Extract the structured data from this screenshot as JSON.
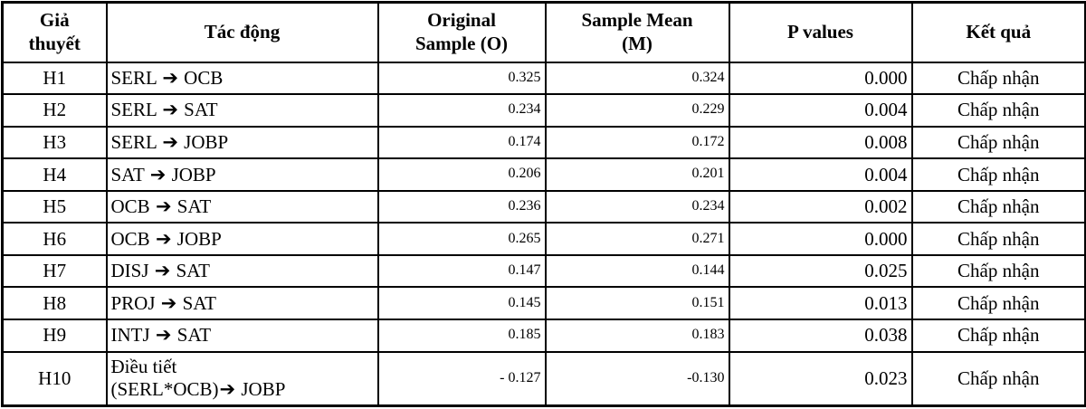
{
  "icons": {
    "right_arrow": "➔"
  },
  "colors": {
    "border": "#000000",
    "background": "#ffffff",
    "text": "#000000"
  },
  "table": {
    "columns": [
      {
        "key": "hypothesis",
        "label": "Giả thuyết",
        "label_lines": [
          "Giả",
          "thuyết"
        ]
      },
      {
        "key": "effect",
        "label": "Tác động",
        "label_lines": [
          "Tác động"
        ]
      },
      {
        "key": "original_sample",
        "label": "Original Sample (O)",
        "label_lines": [
          "Original",
          "Sample (O)"
        ]
      },
      {
        "key": "sample_mean",
        "label": "Sample Mean (M)",
        "label_lines": [
          "Sample Mean",
          "(M)"
        ]
      },
      {
        "key": "p_values",
        "label": "P values",
        "label_lines": [
          "P values"
        ]
      },
      {
        "key": "result",
        "label": "Kết quả",
        "label_lines": [
          "Kết quả"
        ]
      }
    ],
    "rows": [
      {
        "hypothesis": "H1",
        "effect_lines": [
          "SERL ➔ OCB"
        ],
        "original_sample": "0.325",
        "sample_mean": "0.324",
        "p_values": "0.000",
        "result": "Chấp nhận"
      },
      {
        "hypothesis": "H2",
        "effect_lines": [
          "SERL ➔ SAT"
        ],
        "original_sample": "0.234",
        "sample_mean": "0.229",
        "p_values": "0.004",
        "result": "Chấp nhận"
      },
      {
        "hypothesis": "H3",
        "effect_lines": [
          "SERL ➔ JOBP"
        ],
        "original_sample": "0.174",
        "sample_mean": "0.172",
        "p_values": "0.008",
        "result": "Chấp nhận"
      },
      {
        "hypothesis": "H4",
        "effect_lines": [
          "SAT ➔ JOBP"
        ],
        "original_sample": "0.206",
        "sample_mean": "0.201",
        "p_values": "0.004",
        "result": "Chấp nhận"
      },
      {
        "hypothesis": "H5",
        "effect_lines": [
          "OCB ➔ SAT"
        ],
        "original_sample": "0.236",
        "sample_mean": "0.234",
        "p_values": "0.002",
        "result": "Chấp nhận"
      },
      {
        "hypothesis": "H6",
        "effect_lines": [
          "OCB ➔ JOBP"
        ],
        "original_sample": "0.265",
        "sample_mean": "0.271",
        "p_values": "0.000",
        "result": "Chấp nhận"
      },
      {
        "hypothesis": "H7",
        "effect_lines": [
          "DISJ ➔ SAT"
        ],
        "original_sample": "0.147",
        "sample_mean": "0.144",
        "p_values": "0.025",
        "result": "Chấp nhận"
      },
      {
        "hypothesis": "H8",
        "effect_lines": [
          "PROJ ➔ SAT"
        ],
        "original_sample": "0.145",
        "sample_mean": "0.151",
        "p_values": "0.013",
        "result": "Chấp nhận"
      },
      {
        "hypothesis": "H9",
        "effect_lines": [
          "INTJ ➔ SAT"
        ],
        "original_sample": "0.185",
        "sample_mean": "0.183",
        "p_values": "0.038",
        "result": "Chấp nhận"
      },
      {
        "hypothesis": "H10",
        "effect_lines": [
          "Điều tiết",
          "(SERL*OCB)➔ JOBP"
        ],
        "original_sample": "- 0.127",
        "sample_mean": "-0.130",
        "p_values": "0.023",
        "result": "Chấp nhận"
      }
    ]
  },
  "chart_data": {
    "type": "table",
    "columns": [
      "Giả thuyết",
      "Tác động",
      "Original Sample (O)",
      "Sample Mean (M)",
      "P values",
      "Kết quả"
    ],
    "rows": [
      [
        "H1",
        "SERL ➔ OCB",
        "0.325",
        "0.324",
        "0.000",
        "Chấp nhận"
      ],
      [
        "H2",
        "SERL ➔ SAT",
        "0.234",
        "0.229",
        "0.004",
        "Chấp nhận"
      ],
      [
        "H3",
        "SERL ➔ JOBP",
        "0.174",
        "0.172",
        "0.008",
        "Chấp nhận"
      ],
      [
        "H4",
        "SAT ➔ JOBP",
        "0.206",
        "0.201",
        "0.004",
        "Chấp nhận"
      ],
      [
        "H5",
        "OCB ➔ SAT",
        "0.236",
        "0.234",
        "0.002",
        "Chấp nhận"
      ],
      [
        "H6",
        "OCB ➔ JOBP",
        "0.265",
        "0.271",
        "0.000",
        "Chấp nhận"
      ],
      [
        "H7",
        "DISJ ➔ SAT",
        "0.147",
        "0.144",
        "0.025",
        "Chấp nhận"
      ],
      [
        "H8",
        "PROJ ➔ SAT",
        "0.145",
        "0.151",
        "0.013",
        "Chấp nhận"
      ],
      [
        "H9",
        "INTJ ➔ SAT",
        "0.185",
        "0.183",
        "0.038",
        "Chấp nhận"
      ],
      [
        "H10",
        "Điều tiết (SERL*OCB)➔ JOBP",
        "- 0.127",
        "-0.130",
        "0.023",
        "Chấp nhận"
      ]
    ]
  }
}
